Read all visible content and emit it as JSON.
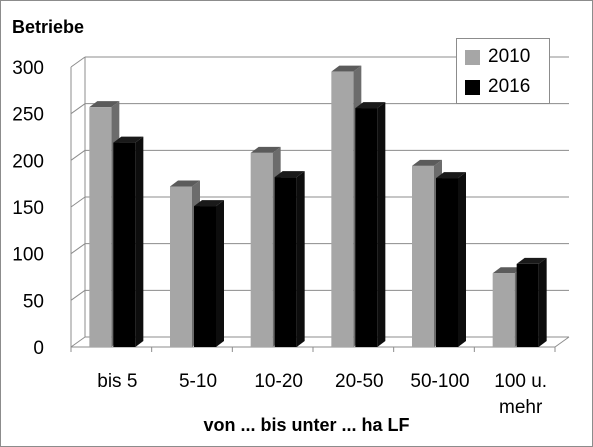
{
  "chart_data": {
    "type": "bar",
    "title": "",
    "ylabel": "Betriebe",
    "xlabel": "von ... bis unter ... ha LF",
    "categories": [
      "bis 5",
      "5-10",
      "10-20",
      "20-50",
      "50-100",
      "100 u. mehr"
    ],
    "series": [
      {
        "name": "2010",
        "values": [
          257,
          172,
          208,
          295,
          194,
          79
        ],
        "color": "#a6a6a6"
      },
      {
        "name": "2016",
        "values": [
          219,
          151,
          182,
          256,
          181,
          89
        ],
        "color": "#000000"
      }
    ],
    "ylim": [
      0,
      300
    ],
    "yticks": [
      0,
      50,
      100,
      150,
      200,
      250,
      300
    ],
    "grid": true,
    "legend_position": "top-right",
    "style": "3d-clustered-column"
  }
}
